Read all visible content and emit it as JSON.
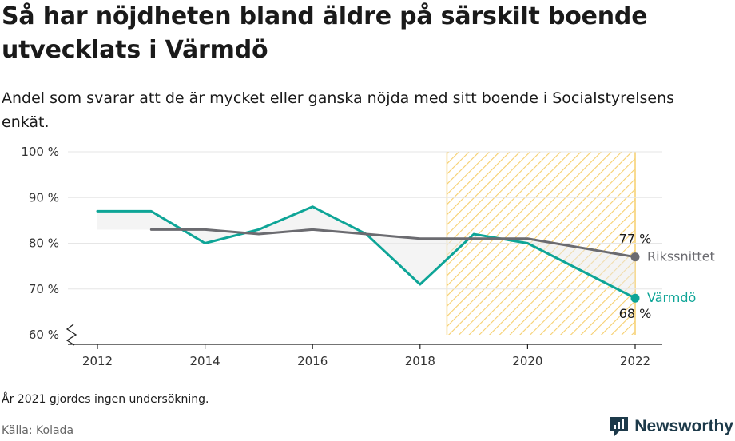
{
  "title": "Så har nöjdheten bland äldre på särskilt boende utvecklats i Värmdö",
  "subtitle": "Andel som svarar att de är mycket eller ganska nöjda med sitt boende i Socialstyrelsens enkät.",
  "note": "År 2021 gjordes ingen undersökning.",
  "source": "Källa: Kolada",
  "brand": {
    "name": "Newsworthy",
    "icon": "newsworthy-logo-icon"
  },
  "colors": {
    "varmdo": "#0ea597",
    "riksnitt": "#6b6b70",
    "highlight_stripe": "#f6cf6e",
    "grid": "#e6e6e6",
    "brand": "#1d3a4a"
  },
  "chart_data": {
    "type": "line",
    "ylim": [
      60,
      100
    ],
    "yticks": [
      60,
      70,
      80,
      90,
      100
    ],
    "ytick_labels": [
      "60 %",
      "70 %",
      "80 %",
      "90 %",
      "100 %"
    ],
    "xlim": [
      2011.5,
      2022.5
    ],
    "xticks": [
      2012,
      2014,
      2016,
      2018,
      2020,
      2022
    ],
    "xtick_labels": [
      "2012",
      "2014",
      "2016",
      "2018",
      "2020",
      "2022"
    ],
    "axis_break": true,
    "highlight_range": [
      2018.5,
      2022
    ],
    "series": [
      {
        "name": "Värmdö",
        "color": "#0ea597",
        "x": [
          2012,
          2013,
          2014,
          2015,
          2016,
          2017,
          2018,
          2019,
          2020,
          2022
        ],
        "values": [
          87,
          87,
          80,
          83,
          88,
          82,
          71,
          82,
          80,
          68
        ],
        "end_value_label": "68 %"
      },
      {
        "name": "Rikssnittet",
        "color": "#6b6b70",
        "x": [
          2013,
          2014,
          2015,
          2016,
          2017,
          2018,
          2019,
          2020,
          2022
        ],
        "values": [
          83,
          83,
          82,
          83,
          82,
          81,
          81,
          81,
          77
        ],
        "end_value_label": "77 %"
      }
    ]
  }
}
